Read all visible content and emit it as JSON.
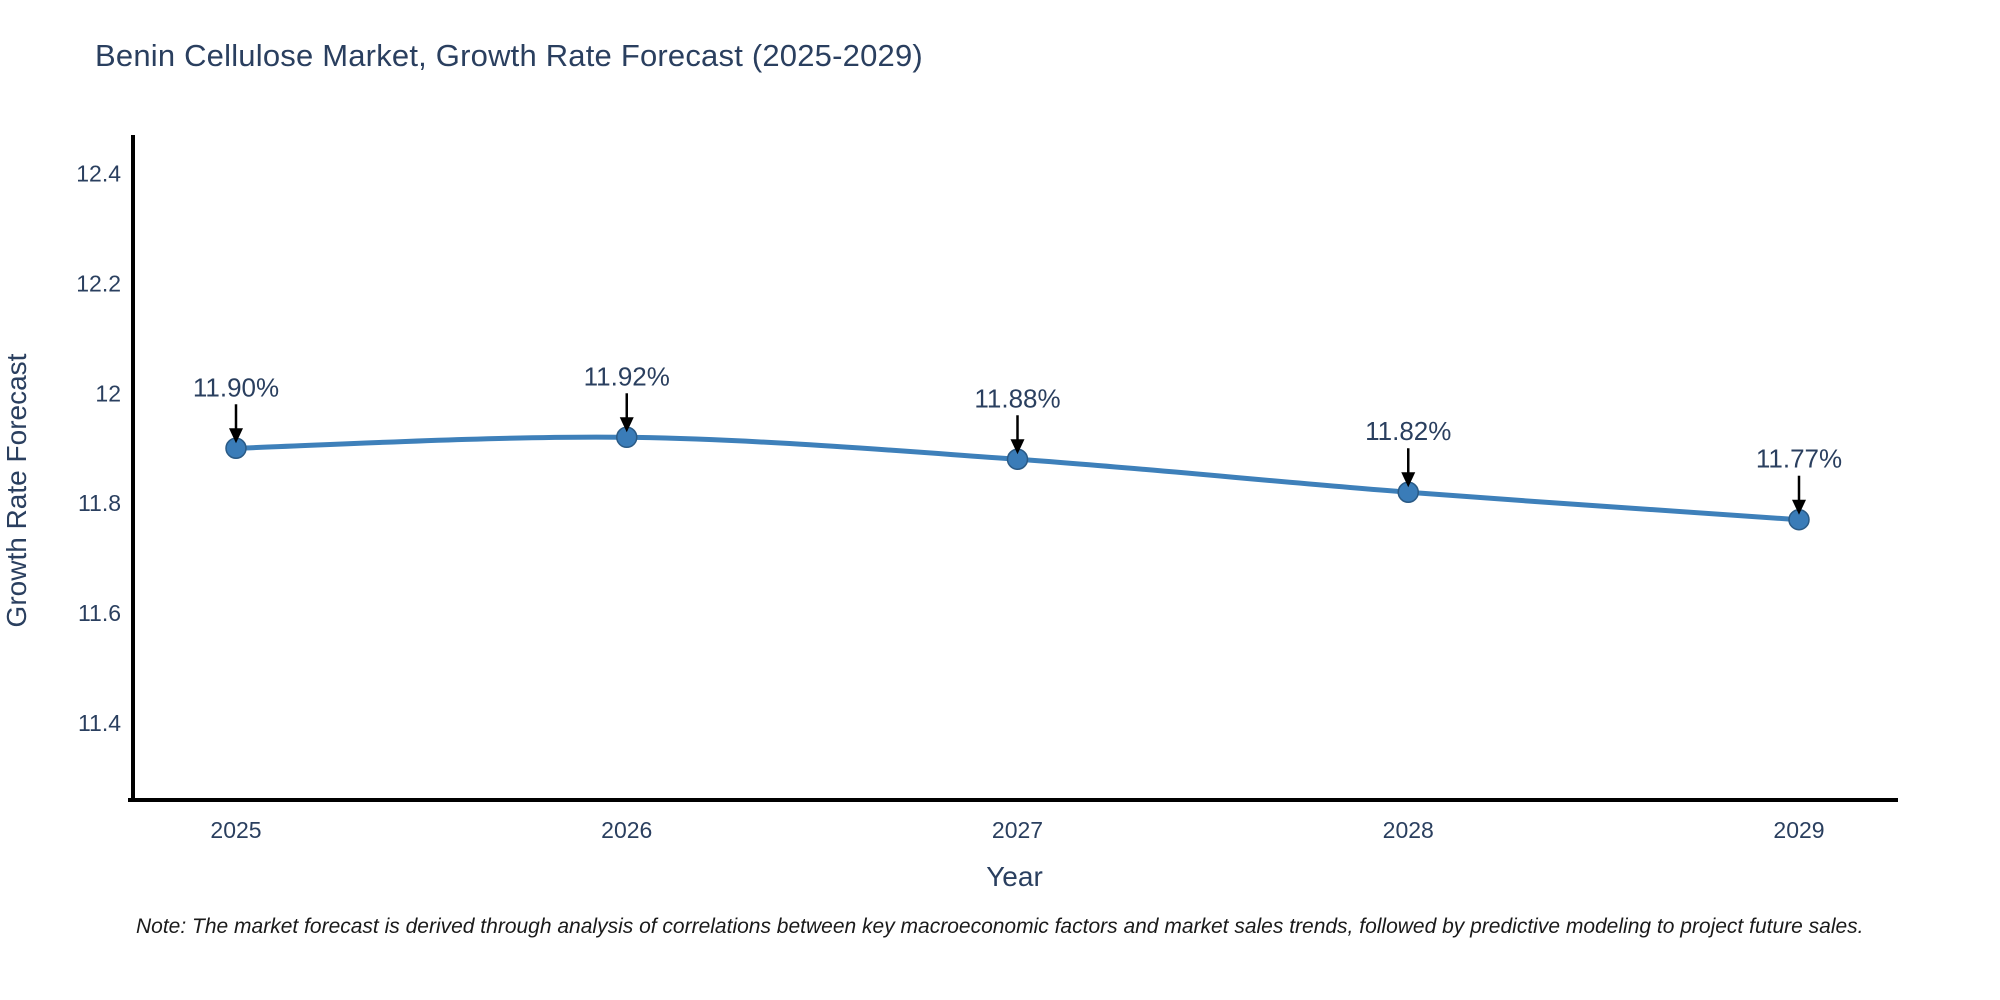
{
  "title": "Benin Cellulose Market, Growth Rate Forecast (2025-2029)",
  "note": "Note: The market forecast is derived through analysis of correlations between key macroeconomic factors and market sales trends, followed by predictive modeling to project future sales.",
  "colors": {
    "line": "#3e80ba",
    "marker_fill": "#3a7cb8",
    "marker_edge": "#2a5a85",
    "axis_line": "#000000",
    "tick_text": "#2a3f5f",
    "axis_title_text": "#2a3f5f",
    "annotation_text": "#2a3f5f",
    "arrow": "#000000",
    "title_text": "#2a3f5f",
    "note_text": "#1a1a1a",
    "background": "#ffffff"
  },
  "chart_data": {
    "type": "line",
    "title": "Benin Cellulose Market, Growth Rate Forecast (2025-2029)",
    "xlabel": "Year",
    "ylabel": "Growth Rate Forecast",
    "x": [
      2025,
      2026,
      2027,
      2028,
      2029
    ],
    "values": [
      11.9,
      11.92,
      11.88,
      11.82,
      11.77
    ],
    "point_labels": [
      "11.90%",
      "11.92%",
      "11.88%",
      "11.82%",
      "11.77%"
    ],
    "x_tick_labels": [
      "2025",
      "2026",
      "2027",
      "2028",
      "2029"
    ],
    "y_ticks": [
      11.4,
      11.6,
      11.8,
      12.0,
      12.2,
      12.4
    ],
    "y_tick_labels": [
      "11.4",
      "11.6",
      "11.8",
      "12",
      "12.2",
      "12.4"
    ],
    "ylim": [
      11.26,
      12.47
    ],
    "grid": false,
    "legend": "none",
    "line_shape": "spline",
    "markers": true,
    "annotation_style": "value-label-with-down-arrow-to-point"
  }
}
